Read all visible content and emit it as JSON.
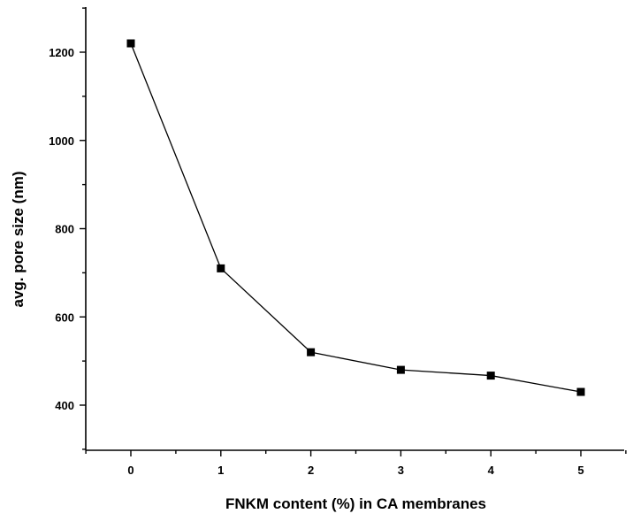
{
  "chart_data": {
    "type": "line",
    "title": "",
    "xlabel": "FNKM content (%) in CA membranes",
    "ylabel": "avg. pore size (nm)",
    "xlim": [
      -0.5,
      5.55
    ],
    "ylim": [
      300,
      1300
    ],
    "x_ticks": [
      0,
      1,
      2,
      3,
      4,
      5
    ],
    "y_ticks": [
      400,
      600,
      800,
      1000,
      1200
    ],
    "grid": false,
    "marker": "square",
    "series": [
      {
        "x": [
          0,
          1,
          2,
          3,
          4,
          5
        ],
        "values": [
          1220,
          710,
          520,
          480,
          467,
          430
        ]
      }
    ],
    "colors": {
      "line": "#000000",
      "marker": "#000000",
      "axis": "#000000"
    }
  }
}
